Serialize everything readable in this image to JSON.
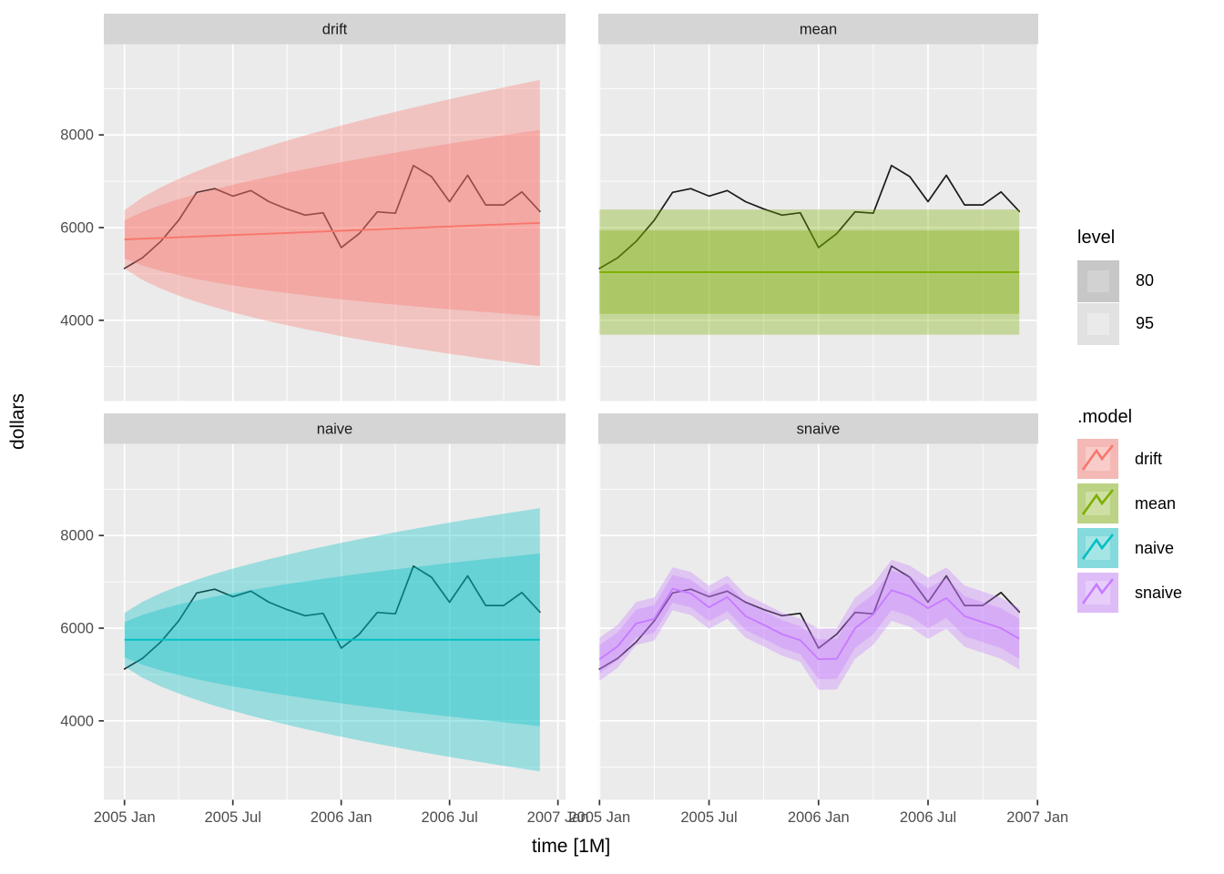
{
  "axes": {
    "y_title": "dollars",
    "x_title": "time [1M]",
    "y_tick_labels": [
      "8000",
      "6000",
      "4000"
    ],
    "x_tick_labels": [
      "2005 Jan",
      "2005 Jul",
      "2006 Jan",
      "2006 Jul",
      "2007 Jan"
    ]
  },
  "facets": [
    "drift",
    "mean",
    "naive",
    "snaive"
  ],
  "legend_level": {
    "title": "level",
    "items": [
      {
        "label": "80",
        "outer": "#c7c7c7",
        "inner": "#d2d2d2"
      },
      {
        "label": "95",
        "outer": "#e1e1e1",
        "inner": "#eaeaea"
      }
    ]
  },
  "legend_model": {
    "title": ".model",
    "items": [
      {
        "label": "drift",
        "color": "#F8766D"
      },
      {
        "label": "mean",
        "color": "#7CAE00"
      },
      {
        "label": "naive",
        "color": "#00BFC4"
      },
      {
        "label": "snaive",
        "color": "#C77CFF"
      }
    ]
  },
  "chart_data": {
    "type": "line",
    "title": "",
    "xlabel": "time [1M]",
    "ylabel": "dollars",
    "facet_titles": [
      "drift",
      "mean",
      "naive",
      "snaive"
    ],
    "levels": [
      80,
      95
    ],
    "ribbon_alpha": 0.34,
    "colors": {
      "actual": "#1a1a1a",
      "drift": "#F8766D",
      "mean": "#7CAE00",
      "naive": "#00BFC4",
      "snaive": "#C77CFF",
      "panel_bg": "#EBEBEB",
      "strip_bg": "#D5D5D5",
      "grid": "#FFFFFF",
      "tick": "#333333",
      "axis_text": "#4D4D4D"
    },
    "x_months": [
      "2005 Jan",
      "2005 Feb",
      "2005 Mar",
      "2005 Apr",
      "2005 May",
      "2005 Jun",
      "2005 Jul",
      "2005 Aug",
      "2005 Sep",
      "2005 Oct",
      "2005 Nov",
      "2005 Dec",
      "2006 Jan",
      "2006 Feb",
      "2006 Mar",
      "2006 Apr",
      "2006 May",
      "2006 Jun",
      "2006 Jul",
      "2006 Aug",
      "2006 Sep",
      "2006 Oct",
      "2006 Nov",
      "2006 Dec"
    ],
    "y_ticks": [
      4000,
      6000,
      8000
    ],
    "y_minor_ticks": [
      3000,
      5000,
      7000,
      9000
    ],
    "x_tick_month_index": [
      0,
      6,
      12,
      18,
      24
    ],
    "x_minor_month_index": [
      3,
      9,
      15,
      21
    ],
    "ylim": [
      2300,
      9950
    ],
    "actual": [
      5120,
      5350,
      5700,
      6160,
      6760,
      6840,
      6680,
      6800,
      6560,
      6400,
      6270,
      6320,
      5570,
      5870,
      6340,
      6310,
      7340,
      7100,
      6560,
      7130,
      6490,
      6490,
      6770,
      6350
    ],
    "models": {
      "drift": {
        "forecast": [
          5745,
          5761,
          5776,
          5792,
          5807,
          5823,
          5838,
          5854,
          5869,
          5885,
          5900,
          5916,
          5931,
          5947,
          5962,
          5978,
          5993,
          6009,
          6024,
          6040,
          6055,
          6071,
          6086,
          6100
        ],
        "hw80": [
          410,
          580,
          710,
          820,
          917,
          1004,
          1085,
          1160,
          1230,
          1297,
          1360,
          1420,
          1478,
          1534,
          1588,
          1640,
          1690,
          1739,
          1787,
          1833,
          1879,
          1923,
          1966,
          2009
        ],
        "hw95": [
          630,
          891,
          1091,
          1260,
          1409,
          1543,
          1667,
          1782,
          1890,
          1992,
          2090,
          2182,
          2272,
          2357,
          2440,
          2520,
          2598,
          2673,
          2747,
          2818,
          2888,
          2955,
          3021,
          3086
        ]
      },
      "mean": {
        "forecast": [
          5040,
          5040,
          5040,
          5040,
          5040,
          5040,
          5040,
          5040,
          5040,
          5040,
          5040,
          5040,
          5040,
          5040,
          5040,
          5040,
          5040,
          5040,
          5040,
          5040,
          5040,
          5040,
          5040,
          5040
        ],
        "hw80": [
          900,
          900,
          900,
          900,
          900,
          900,
          900,
          900,
          900,
          900,
          900,
          900,
          900,
          900,
          900,
          900,
          900,
          900,
          900,
          900,
          900,
          900,
          900,
          900
        ],
        "hw95": [
          1350,
          1350,
          1350,
          1350,
          1350,
          1350,
          1350,
          1350,
          1350,
          1350,
          1350,
          1350,
          1350,
          1350,
          1350,
          1350,
          1350,
          1350,
          1350,
          1350,
          1350,
          1350,
          1350,
          1350
        ]
      },
      "naive": {
        "forecast": [
          5750,
          5750,
          5750,
          5750,
          5750,
          5750,
          5750,
          5750,
          5750,
          5750,
          5750,
          5750,
          5750,
          5750,
          5750,
          5750,
          5750,
          5750,
          5750,
          5750,
          5750,
          5750,
          5750,
          5750
        ],
        "hw80": [
          380,
          537,
          658,
          760,
          850,
          931,
          1005,
          1075,
          1140,
          1202,
          1260,
          1316,
          1370,
          1422,
          1472,
          1520,
          1567,
          1612,
          1656,
          1699,
          1741,
          1782,
          1822,
          1862
        ],
        "hw95": [
          580,
          820,
          1005,
          1160,
          1297,
          1421,
          1534,
          1640,
          1740,
          1834,
          1924,
          2009,
          2091,
          2170,
          2246,
          2320,
          2392,
          2461,
          2528,
          2594,
          2657,
          2720,
          2781,
          2841
        ]
      },
      "snaive": {
        "forecast": [
          5330,
          5610,
          6100,
          6200,
          6850,
          6750,
          6450,
          6670,
          6260,
          6070,
          5870,
          5740,
          5330,
          5340,
          6000,
          6300,
          6820,
          6690,
          6430,
          6650,
          6260,
          6130,
          6000,
          5770
        ],
        "hw80": [
          300,
          300,
          300,
          300,
          300,
          300,
          300,
          300,
          300,
          300,
          300,
          300,
          430,
          430,
          430,
          430,
          430,
          430,
          430,
          430,
          430,
          430,
          430,
          430
        ],
        "hw95": [
          465,
          465,
          465,
          465,
          465,
          465,
          465,
          465,
          465,
          465,
          465,
          465,
          660,
          660,
          660,
          660,
          660,
          660,
          660,
          660,
          660,
          660,
          660,
          660
        ]
      }
    }
  }
}
